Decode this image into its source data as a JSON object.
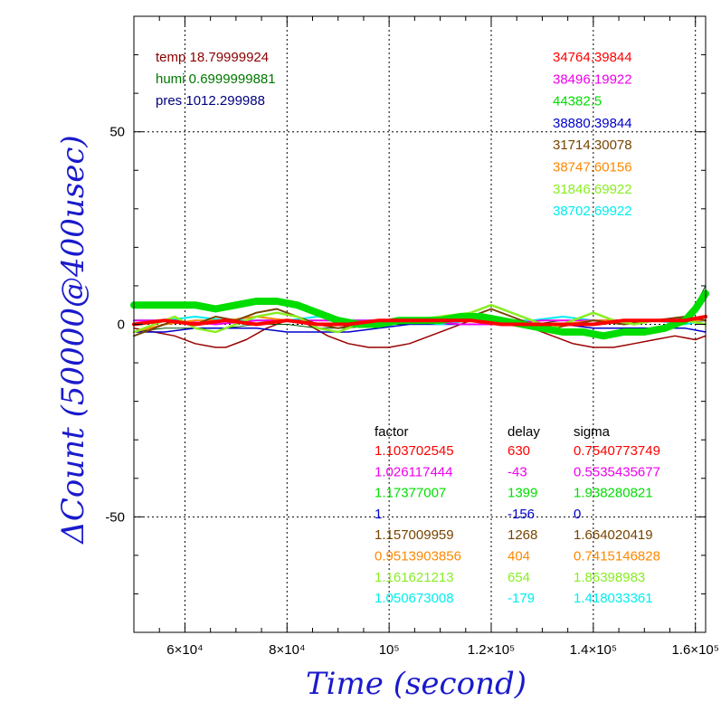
{
  "chart_data": {
    "type": "line",
    "xlabel": "Time (second)",
    "ylabel": "ΔCount (50000@400usec)",
    "xlim": [
      50000,
      162000
    ],
    "ylim": [
      -80,
      80
    ],
    "grid": true,
    "x_ticks": [
      {
        "value": 60000,
        "label": "6×10⁴"
      },
      {
        "value": 80000,
        "label": "8×10⁴"
      },
      {
        "value": 100000,
        "label": "10⁵"
      },
      {
        "value": 120000,
        "label": "1.2×10⁵"
      },
      {
        "value": 140000,
        "label": "1.4×10⁵"
      },
      {
        "value": 160000,
        "label": "1.6×10⁵"
      }
    ],
    "y_ticks": [
      {
        "value": 50,
        "label": "50"
      },
      {
        "value": 0,
        "label": "0"
      },
      {
        "value": -50,
        "label": "-50"
      }
    ],
    "env": [
      {
        "text": "temp 18.79999924",
        "color": "#8b0000"
      },
      {
        "text": "humi 0.6999999881",
        "color": "#007700"
      },
      {
        "text": "pres 1012.299988",
        "color": "#000080"
      }
    ],
    "series": [
      {
        "mean": "34764.39844",
        "factor": "1.103702545",
        "delay": "630",
        "sigma": "0.7540773749",
        "color": "#ff0000",
        "width": 4,
        "points": [
          [
            50000,
            0
          ],
          [
            56000,
            1
          ],
          [
            62000,
            0
          ],
          [
            68000,
            1
          ],
          [
            74000,
            0
          ],
          [
            80000,
            1
          ],
          [
            86000,
            0
          ],
          [
            92000,
            0
          ],
          [
            98000,
            1
          ],
          [
            104000,
            1
          ],
          [
            110000,
            1
          ],
          [
            116000,
            1
          ],
          [
            122000,
            0
          ],
          [
            128000,
            0
          ],
          [
            134000,
            0
          ],
          [
            140000,
            0
          ],
          [
            146000,
            1
          ],
          [
            152000,
            1
          ],
          [
            158000,
            1
          ],
          [
            162000,
            2
          ]
        ]
      },
      {
        "mean": "38496.19922",
        "factor": "1.026117444",
        "delay": "-43",
        "sigma": "0.5535435677",
        "color": "#ee00ee",
        "width": 2,
        "points": [
          [
            50000,
            1
          ],
          [
            58000,
            1
          ],
          [
            66000,
            0
          ],
          [
            74000,
            1
          ],
          [
            82000,
            1
          ],
          [
            90000,
            1
          ],
          [
            98000,
            1
          ],
          [
            106000,
            1
          ],
          [
            114000,
            0
          ],
          [
            122000,
            0
          ],
          [
            130000,
            1
          ],
          [
            138000,
            1
          ],
          [
            146000,
            1
          ],
          [
            154000,
            1
          ],
          [
            162000,
            1
          ]
        ]
      },
      {
        "mean": "44382.5",
        "factor": "1.17377007",
        "delay": "1399",
        "sigma": "1.938280821",
        "color": "#00dd00",
        "width": 8,
        "points": [
          [
            50000,
            5
          ],
          [
            56000,
            5
          ],
          [
            62000,
            5
          ],
          [
            66000,
            4
          ],
          [
            70000,
            5
          ],
          [
            74000,
            6
          ],
          [
            78000,
            6
          ],
          [
            82000,
            5
          ],
          [
            86000,
            3
          ],
          [
            90000,
            1
          ],
          [
            94000,
            0
          ],
          [
            98000,
            0
          ],
          [
            102000,
            1
          ],
          [
            106000,
            1
          ],
          [
            110000,
            1
          ],
          [
            114000,
            2
          ],
          [
            118000,
            2
          ],
          [
            122000,
            1
          ],
          [
            126000,
            0
          ],
          [
            130000,
            -1
          ],
          [
            134000,
            -2
          ],
          [
            138000,
            -2
          ],
          [
            142000,
            -3
          ],
          [
            146000,
            -2
          ],
          [
            150000,
            -2
          ],
          [
            154000,
            -1
          ],
          [
            158000,
            1
          ],
          [
            160000,
            4
          ],
          [
            162000,
            8
          ]
        ]
      },
      {
        "mean": "38880.39844",
        "factor": "1",
        "delay": "-156",
        "sigma": "0",
        "color": "#0000cc",
        "width": 1.5,
        "points": [
          [
            50000,
            -2
          ],
          [
            56000,
            -2
          ],
          [
            62000,
            -1
          ],
          [
            68000,
            -1
          ],
          [
            74000,
            -1
          ],
          [
            80000,
            -2
          ],
          [
            86000,
            -2
          ],
          [
            92000,
            -2
          ],
          [
            98000,
            -1
          ],
          [
            104000,
            0
          ],
          [
            110000,
            0
          ],
          [
            116000,
            0
          ],
          [
            122000,
            0
          ],
          [
            128000,
            0
          ],
          [
            134000,
            0
          ],
          [
            140000,
            -1
          ],
          [
            146000,
            -1
          ],
          [
            152000,
            -1
          ],
          [
            158000,
            -1
          ],
          [
            162000,
            -2
          ]
        ]
      },
      {
        "mean": "31714.30078",
        "factor": "1.157009959",
        "delay": "1268",
        "sigma": "1.664020419",
        "color": "#774400",
        "width": 2,
        "points": [
          [
            50000,
            -3
          ],
          [
            54000,
            -1
          ],
          [
            58000,
            1
          ],
          [
            62000,
            0
          ],
          [
            66000,
            2
          ],
          [
            70000,
            1
          ],
          [
            74000,
            3
          ],
          [
            78000,
            4
          ],
          [
            82000,
            2
          ],
          [
            86000,
            0
          ],
          [
            90000,
            -1
          ],
          [
            94000,
            0
          ],
          [
            98000,
            1
          ],
          [
            104000,
            1
          ],
          [
            110000,
            1
          ],
          [
            116000,
            2
          ],
          [
            120000,
            4
          ],
          [
            124000,
            2
          ],
          [
            128000,
            0
          ],
          [
            132000,
            -1
          ],
          [
            136000,
            0
          ],
          [
            140000,
            1
          ],
          [
            146000,
            0
          ],
          [
            152000,
            1
          ],
          [
            158000,
            2
          ],
          [
            162000,
            1
          ]
        ]
      },
      {
        "mean": "38747.60156",
        "factor": "0.9513903856",
        "delay": "404",
        "sigma": "0.7415146828",
        "color": "#ff8800",
        "width": 2,
        "points": [
          [
            50000,
            -2
          ],
          [
            56000,
            0
          ],
          [
            62000,
            1
          ],
          [
            68000,
            1
          ],
          [
            74000,
            2
          ],
          [
            80000,
            1
          ],
          [
            86000,
            0
          ],
          [
            92000,
            0
          ],
          [
            98000,
            1
          ],
          [
            104000,
            1
          ],
          [
            110000,
            1
          ],
          [
            116000,
            2
          ],
          [
            122000,
            1
          ],
          [
            128000,
            0
          ],
          [
            134000,
            0
          ],
          [
            140000,
            1
          ],
          [
            146000,
            1
          ],
          [
            152000,
            1
          ],
          [
            158000,
            1
          ],
          [
            162000,
            1
          ]
        ]
      },
      {
        "mean": "31846.69922",
        "factor": "1.161621213",
        "delay": "654",
        "sigma": "1.86398983",
        "color": "#88ee22",
        "width": 2.5,
        "points": [
          [
            50000,
            -2
          ],
          [
            54000,
            0
          ],
          [
            58000,
            2
          ],
          [
            62000,
            -1
          ],
          [
            66000,
            -2
          ],
          [
            70000,
            0
          ],
          [
            74000,
            2
          ],
          [
            78000,
            3
          ],
          [
            82000,
            2
          ],
          [
            86000,
            -1
          ],
          [
            90000,
            -2
          ],
          [
            94000,
            0
          ],
          [
            98000,
            1
          ],
          [
            104000,
            1
          ],
          [
            110000,
            2
          ],
          [
            116000,
            3
          ],
          [
            120000,
            5
          ],
          [
            124000,
            3
          ],
          [
            128000,
            1
          ],
          [
            132000,
            -1
          ],
          [
            136000,
            1
          ],
          [
            140000,
            3
          ],
          [
            144000,
            1
          ],
          [
            148000,
            0
          ],
          [
            152000,
            1
          ],
          [
            158000,
            1
          ],
          [
            162000,
            0
          ]
        ]
      },
      {
        "mean": "38702.69922",
        "factor": "1.050673008",
        "delay": "-179",
        "sigma": "1.418033361",
        "color": "#00eeee",
        "width": 2,
        "points": [
          [
            50000,
            1
          ],
          [
            56000,
            1
          ],
          [
            62000,
            2
          ],
          [
            68000,
            1
          ],
          [
            74000,
            1
          ],
          [
            80000,
            1
          ],
          [
            86000,
            2
          ],
          [
            92000,
            1
          ],
          [
            98000,
            1
          ],
          [
            104000,
            1
          ],
          [
            110000,
            0
          ],
          [
            116000,
            1
          ],
          [
            122000,
            1
          ],
          [
            128000,
            1
          ],
          [
            134000,
            2
          ],
          [
            140000,
            1
          ],
          [
            146000,
            1
          ],
          [
            152000,
            1
          ],
          [
            158000,
            0
          ],
          [
            162000,
            1
          ]
        ]
      }
    ],
    "temp_curve": {
      "color": "#990000",
      "width": 1.5,
      "points": [
        [
          50000,
          -1
        ],
        [
          54000,
          -2
        ],
        [
          58000,
          -3
        ],
        [
          62000,
          -5
        ],
        [
          66000,
          -6
        ],
        [
          68000,
          -6
        ],
        [
          72000,
          -4
        ],
        [
          76000,
          -1
        ],
        [
          80000,
          1
        ],
        [
          84000,
          0
        ],
        [
          88000,
          -3
        ],
        [
          92000,
          -5
        ],
        [
          96000,
          -6
        ],
        [
          100000,
          -6
        ],
        [
          104000,
          -5
        ],
        [
          108000,
          -3
        ],
        [
          112000,
          -1
        ],
        [
          116000,
          1
        ],
        [
          120000,
          2
        ],
        [
          124000,
          1
        ],
        [
          128000,
          -1
        ],
        [
          132000,
          -3
        ],
        [
          136000,
          -5
        ],
        [
          140000,
          -6
        ],
        [
          144000,
          -6
        ],
        [
          148000,
          -5
        ],
        [
          152000,
          -4
        ],
        [
          156000,
          -3
        ],
        [
          160000,
          -4
        ],
        [
          162000,
          -3
        ]
      ]
    },
    "humi_curve": {
      "color": "#005500",
      "width": 1,
      "points": [
        [
          50000,
          -2
        ],
        [
          56000,
          -1
        ],
        [
          62000,
          -1
        ],
        [
          68000,
          -1
        ],
        [
          74000,
          0
        ],
        [
          80000,
          0
        ],
        [
          86000,
          -1
        ],
        [
          92000,
          -1
        ],
        [
          98000,
          0
        ],
        [
          104000,
          0
        ],
        [
          110000,
          0
        ],
        [
          116000,
          0
        ],
        [
          122000,
          0
        ],
        [
          128000,
          0
        ],
        [
          134000,
          1
        ],
        [
          140000,
          1
        ],
        [
          146000,
          1
        ],
        [
          152000,
          1
        ],
        [
          156000,
          1
        ],
        [
          158000,
          2
        ],
        [
          160000,
          5
        ],
        [
          162000,
          10
        ]
      ]
    }
  },
  "table": {
    "headers": [
      "factor",
      "delay",
      "sigma"
    ]
  }
}
